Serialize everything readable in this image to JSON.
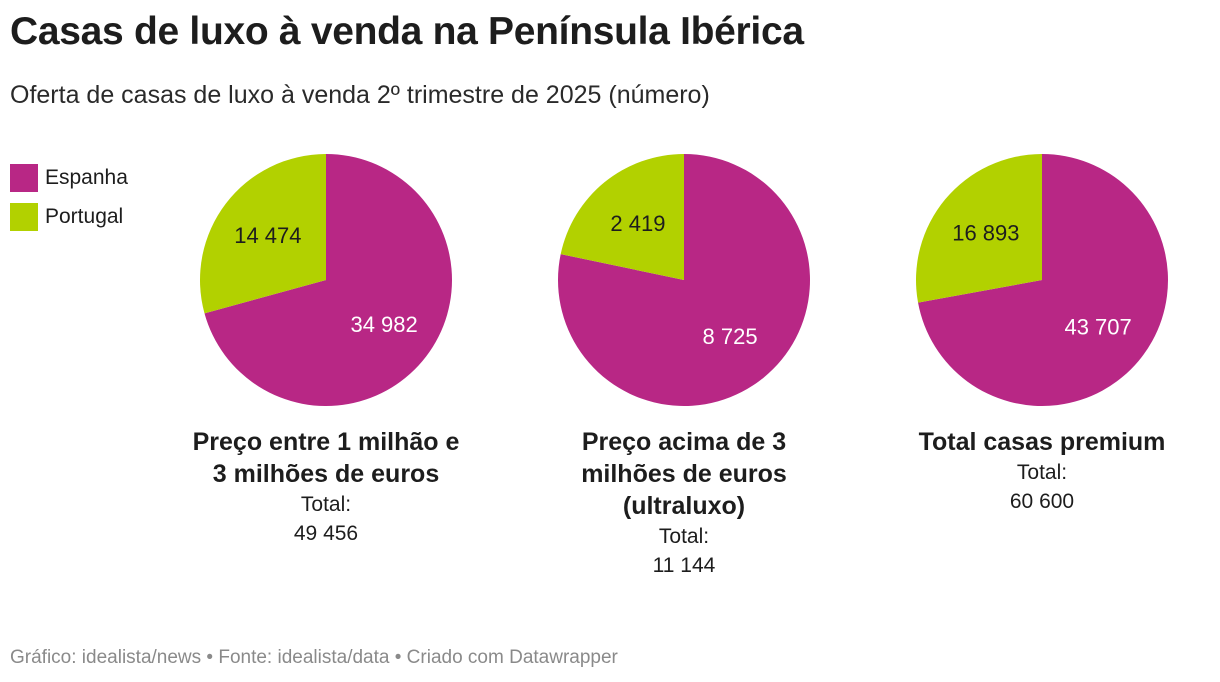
{
  "header": {
    "title": "Casas de luxo à venda na Península Ibérica",
    "subtitle": "Oferta de casas de luxo à venda 2º trimestre de 2025 (número)"
  },
  "footer": {
    "text": "Gráfico: idealista/news • Fonte: idealista/data • Criado com Datawrapper"
  },
  "colors": {
    "espanha": "#b82785",
    "portugal": "#b2d100"
  },
  "legend": [
    {
      "label": "Espanha",
      "color": "#b82785"
    },
    {
      "label": "Portugal",
      "color": "#b2d100"
    }
  ],
  "pies": [
    {
      "title": "Preço entre 1 milhão e\n3 milhões de euros",
      "total_text": "Total:\n49 456",
      "slices": [
        {
          "label": "Espanha",
          "value": 34982,
          "display": "34 982"
        },
        {
          "label": "Portugal",
          "value": 14474,
          "display": "14 474"
        }
      ]
    },
    {
      "title": "Preço acima de 3\nmilhões de euros\n(ultraluxo)",
      "total_text": "Total:\n11 144",
      "slices": [
        {
          "label": "Espanha",
          "value": 8725,
          "display": "8 725"
        },
        {
          "label": "Portugal",
          "value": 2419,
          "display": "2 419"
        }
      ]
    },
    {
      "title": "Total casas premium",
      "total_text": "Total:\n60 600",
      "slices": [
        {
          "label": "Espanha",
          "value": 43707,
          "display": "43 707"
        },
        {
          "label": "Portugal",
          "value": 16893,
          "display": "16 893"
        }
      ]
    }
  ],
  "chart_data": [
    {
      "type": "pie",
      "title": "Preço entre 1 milhão e 3 milhões de euros",
      "categories": [
        "Espanha",
        "Portugal"
      ],
      "values": [
        34982,
        14474
      ],
      "total": 49456
    },
    {
      "type": "pie",
      "title": "Preço acima de 3 milhões de euros (ultraluxo)",
      "categories": [
        "Espanha",
        "Portugal"
      ],
      "values": [
        8725,
        2419
      ],
      "total": 11144
    },
    {
      "type": "pie",
      "title": "Total casas premium",
      "categories": [
        "Espanha",
        "Portugal"
      ],
      "values": [
        43707,
        16893
      ],
      "total": 60600
    }
  ]
}
